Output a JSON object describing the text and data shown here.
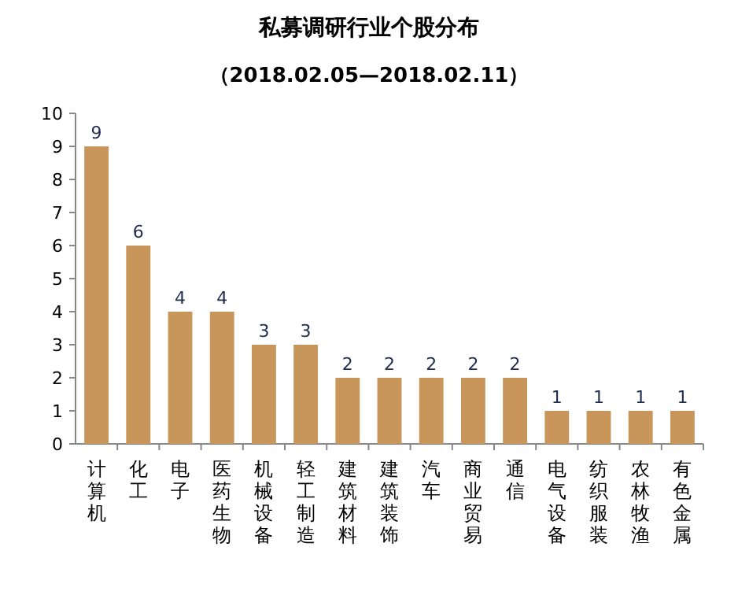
{
  "chart_data": {
    "type": "bar",
    "title": "私募调研行业个股分布",
    "subtitle": "（2018.02.05—2018.02.11）",
    "categories": [
      "计算机",
      "化工",
      "电子",
      "医药生物",
      "机械设备",
      "轻工制造",
      "建筑材料",
      "建筑装饰",
      "汽车",
      "商业贸易",
      "通信",
      "电气设备",
      "纺织服装",
      "农林牧渔",
      "有色金属"
    ],
    "values": [
      9,
      6,
      4,
      4,
      3,
      3,
      2,
      2,
      2,
      2,
      2,
      1,
      1,
      1,
      1
    ],
    "color": "#c8965a",
    "ylim": [
      0,
      10
    ],
    "yticks": [
      0,
      1,
      2,
      3,
      4,
      5,
      6,
      7,
      8,
      9,
      10
    ],
    "data_labels": true
  }
}
